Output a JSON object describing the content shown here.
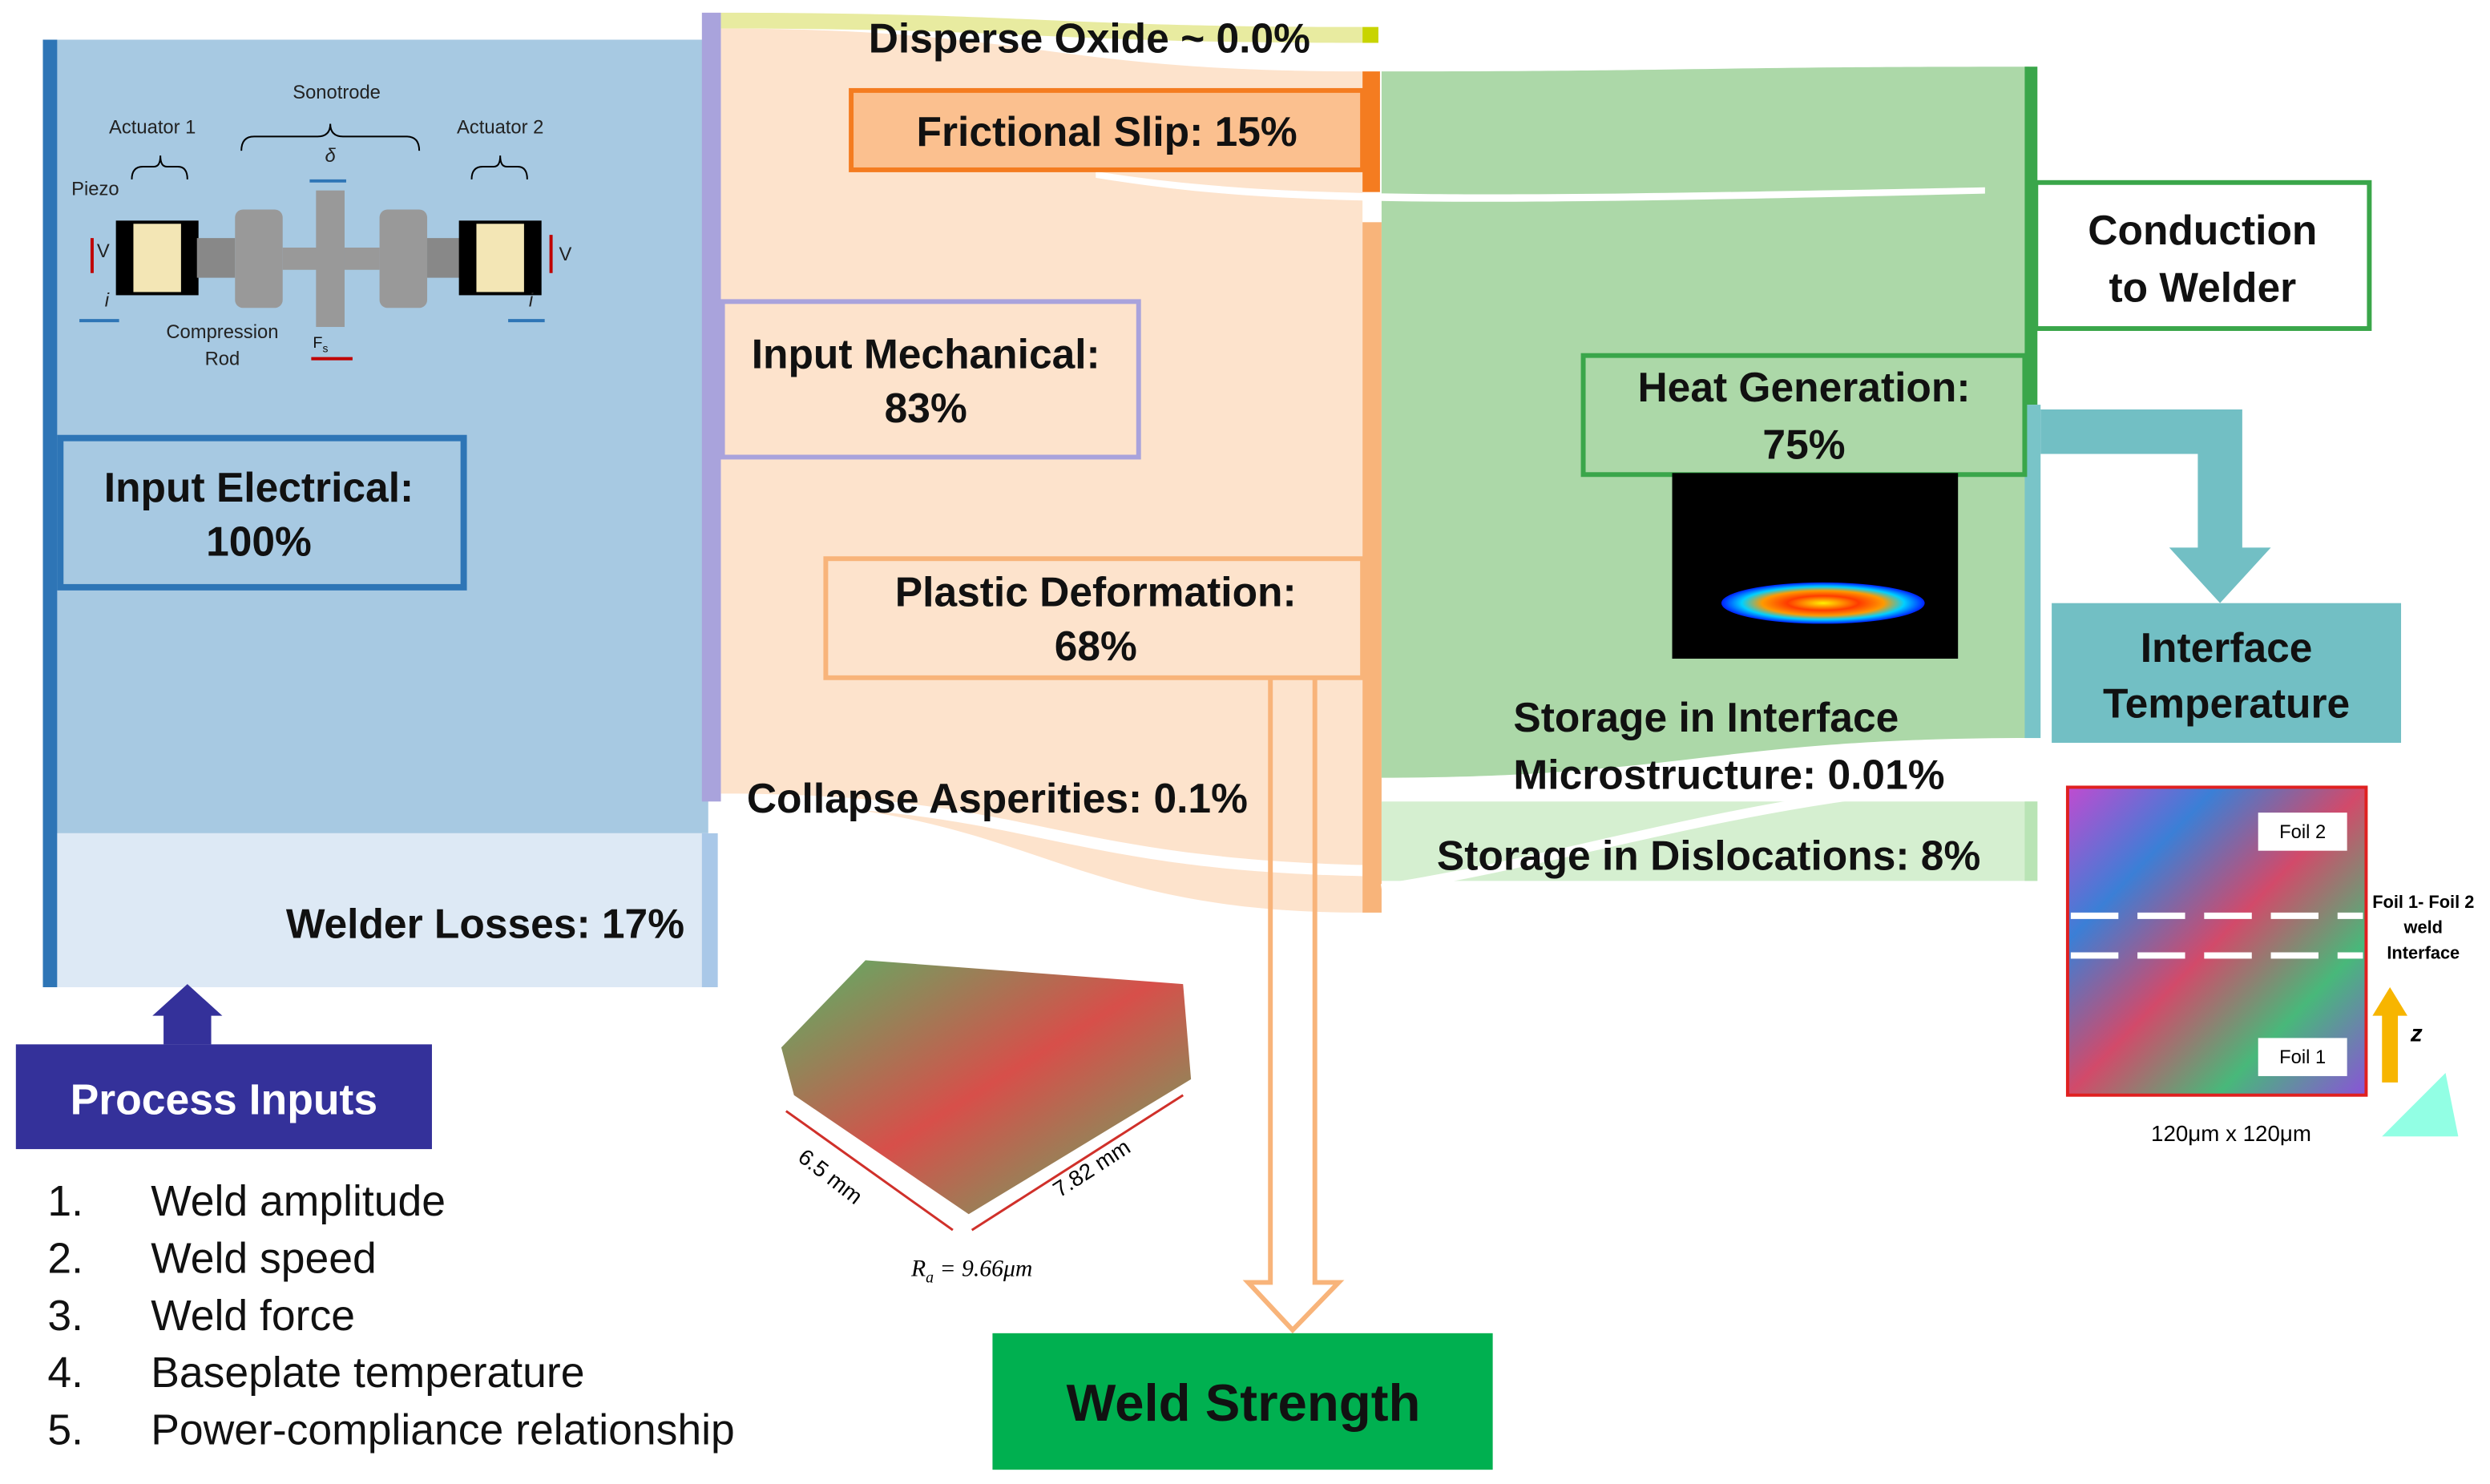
{
  "flow": {
    "input_electrical": [
      "Input Electrical:",
      "100%"
    ],
    "welder_losses": "Welder Losses: 17%",
    "disperse_oxide": "Disperse Oxide ~ 0.0%",
    "frictional_slip": "Frictional Slip: 15%",
    "input_mechanical": [
      "Input Mechanical:",
      "83%"
    ],
    "plastic_deformation": [
      "Plastic Deformation:",
      "68%"
    ],
    "collapse_asperities": "Collapse Asperities: 0.1%",
    "heat_generation": [
      "Heat Generation:",
      "75%"
    ],
    "conduction": [
      "Conduction",
      "to Welder"
    ],
    "storage_interface": [
      "Storage in Interface",
      "Microstructure: 0.01%"
    ],
    "storage_dislocations": "Storage in Dislocations: 8%",
    "interface_temperature": [
      "Interface",
      "Temperature"
    ],
    "weld_strength": "Weld Strength"
  },
  "process_inputs": {
    "title": "Process Inputs",
    "items": [
      [
        "1.",
        "Weld amplitude"
      ],
      [
        "2.",
        "Weld speed"
      ],
      [
        "3.",
        "Weld force"
      ],
      [
        "4.",
        "Baseplate temperature"
      ],
      [
        "5.",
        "Power-compliance relationship"
      ]
    ]
  },
  "actuator_figure": {
    "actuator_1": "Actuator 1",
    "sonotrode": "Sonotrode",
    "actuator_2": "Actuator 2",
    "piezo": "Piezo",
    "compression_rod": [
      "Compression",
      "Rod"
    ],
    "delta": "δ",
    "voltage": "V",
    "current": "i",
    "force": [
      "F",
      "s"
    ]
  },
  "surface_figure": {
    "width": "6.5 mm",
    "length": "7.82 mm",
    "roughness": [
      "R",
      "a",
      " = 9.66μm"
    ]
  },
  "ebsd_figure": {
    "foil_2": "Foil 2",
    "foil_1": "Foil 1",
    "interface": [
      "Foil 1- Foil 2",
      "weld",
      "Interface"
    ],
    "axis": "z",
    "scale": "120μm x 120μm"
  }
}
